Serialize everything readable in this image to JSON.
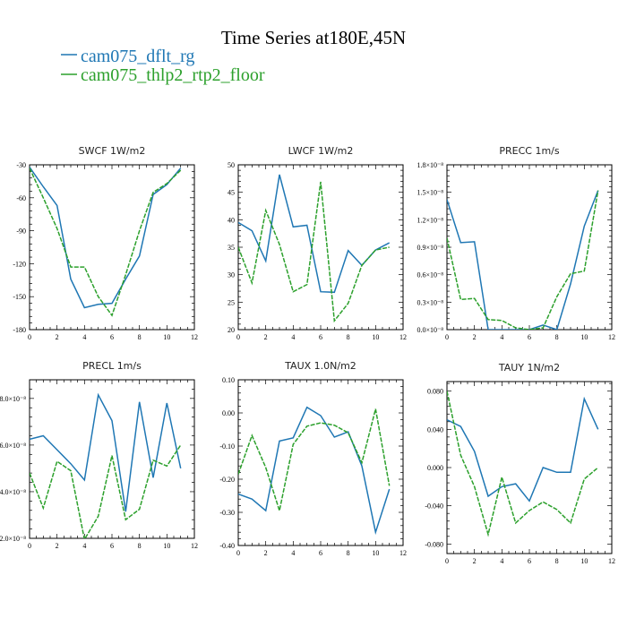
{
  "figure": {
    "title": "Time Series at180E,45N",
    "legend": [
      {
        "name": "cam075_dflt_rg",
        "color": "#1f77b4"
      },
      {
        "name": "cam075_thlp2_rtp2_floor",
        "color": "#2ca02c"
      }
    ]
  },
  "chart_data": [
    {
      "type": "line",
      "title": "SWCF   1W/m2",
      "xlim": [
        0,
        12
      ],
      "ylim": [
        -180,
        -30
      ],
      "xticks": [
        0,
        2,
        4,
        6,
        8,
        10,
        12
      ],
      "yticks": [
        -30,
        -60,
        -90,
        -120,
        -150,
        -180
      ],
      "ytick_labels": [
        "-30",
        "-60",
        "-90",
        "-120",
        "-150",
        "-180"
      ],
      "x": [
        0,
        1,
        2,
        3,
        4,
        5,
        6,
        7,
        8,
        9,
        10,
        11
      ],
      "series": [
        {
          "name": "cam075_dflt_rg",
          "values": [
            -32,
            -50,
            -67,
            -134,
            -160,
            -157,
            -156,
            -134,
            -113,
            -57,
            -48,
            -33
          ]
        },
        {
          "name": "cam075_thlp2_rtp2_floor",
          "values": [
            -33,
            -60,
            -88,
            -123,
            -123,
            -150,
            -167,
            -130,
            -90,
            -55,
            -47,
            -35
          ]
        }
      ]
    },
    {
      "type": "line",
      "title": "LWCF   1W/m2",
      "xlim": [
        0,
        12
      ],
      "ylim": [
        20,
        50
      ],
      "xticks": [
        0,
        2,
        4,
        6,
        8,
        10,
        12
      ],
      "yticks": [
        20,
        25,
        30,
        35,
        40,
        45,
        50
      ],
      "ytick_labels": [
        "20",
        "25",
        "30",
        "35",
        "40",
        "45",
        "50"
      ],
      "x": [
        0,
        1,
        2,
        3,
        4,
        5,
        6,
        7,
        8,
        9,
        10,
        11
      ],
      "series": [
        {
          "name": "cam075_dflt_rg",
          "values": [
            39.5,
            38,
            32.5,
            48.2,
            38.7,
            39,
            26.9,
            26.8,
            34.4,
            31.7,
            34.5,
            35.8
          ]
        },
        {
          "name": "cam075_thlp2_rtp2_floor",
          "values": [
            35,
            28.5,
            41.7,
            35.5,
            26.9,
            28.2,
            46.9,
            21.6,
            24.8,
            31.7,
            34.5,
            35
          ]
        }
      ]
    },
    {
      "type": "line",
      "title": "PRECC   1m/s",
      "xlim": [
        0,
        12
      ],
      "ylim": [
        0,
        1.8e-08
      ],
      "xticks": [
        0,
        2,
        4,
        6,
        8,
        10,
        12
      ],
      "yticks": [
        0,
        3e-09,
        6e-09,
        9e-09,
        1.2e-08,
        1.5e-08,
        1.8e-08
      ],
      "ytick_labels": [
        "0.0×10⁻⁸",
        "0.3×10⁻⁸",
        "0.6×10⁻⁸",
        "0.9×10⁻⁸",
        "1.2×10⁻⁸",
        "1.5×10⁻⁸",
        "1.8×10⁻⁸"
      ],
      "x": [
        0,
        1,
        2,
        3,
        4,
        5,
        6,
        7,
        8,
        9,
        10,
        11
      ],
      "series": [
        {
          "name": "cam075_dflt_rg",
          "values": [
            1.42e-08,
            9.5e-09,
            9.6e-09,
            0,
            0,
            0,
            0,
            5e-10,
            0,
            5e-09,
            1.13e-08,
            1.52e-08
          ]
        },
        {
          "name": "cam075_thlp2_rtp2_floor",
          "values": [
            1e-08,
            3.3e-09,
            3.4e-09,
            1.1e-09,
            1e-09,
            2e-10,
            0,
            2e-10,
            3.6e-09,
            6.1e-09,
            6.4e-09,
            1.52e-08
          ]
        }
      ]
    },
    {
      "type": "line",
      "title": "PRECL   1m/s",
      "xlim": [
        0,
        12
      ],
      "ylim": [
        2,
        8.8
      ],
      "xticks": [
        0,
        2,
        4,
        6,
        8,
        10,
        12
      ],
      "yticks": [
        2,
        4,
        6,
        8
      ],
      "ytick_labels": [
        ".2.0×10⁻⁸",
        "4.0×10⁻⁸",
        "6.0×10⁻⁸",
        "8.0×10⁻⁸"
      ],
      "x": [
        0,
        1,
        2,
        3,
        4,
        5,
        6,
        7,
        8,
        9,
        10,
        11
      ],
      "series": [
        {
          "name": "cam075_dflt_rg",
          "values": [
            6.25,
            6.4,
            5.8,
            5.2,
            4.5,
            8.15,
            7.05,
            3.15,
            7.85,
            4.6,
            7.8,
            5.0
          ]
        },
        {
          "name": "cam075_thlp2_rtp2_floor",
          "values": [
            4.8,
            3.3,
            5.3,
            4.9,
            1.95,
            2.95,
            5.55,
            2.8,
            3.25,
            5.35,
            5.1,
            6.0
          ]
        }
      ]
    },
    {
      "type": "line",
      "title": "TAUX   1.0N/m2",
      "xlim": [
        0,
        12
      ],
      "ylim": [
        -0.4,
        0.1
      ],
      "xticks": [
        0,
        2,
        4,
        6,
        8,
        10,
        12
      ],
      "yticks": [
        0.1,
        0,
        -0.1,
        -0.2,
        -0.3,
        -0.4
      ],
      "ytick_labels": [
        "0.10",
        "0.00",
        "-0.10",
        "-0.20",
        "-0.30",
        "-0.40"
      ],
      "x": [
        0,
        1,
        2,
        3,
        4,
        5,
        6,
        7,
        8,
        9,
        10,
        11
      ],
      "series": [
        {
          "name": "cam075_dflt_rg",
          "values": [
            -0.245,
            -0.26,
            -0.295,
            -0.085,
            -0.075,
            0.017,
            -0.008,
            -0.073,
            -0.057,
            -0.16,
            -0.36,
            -0.23
          ]
        },
        {
          "name": "cam075_thlp2_rtp2_floor",
          "values": [
            -0.185,
            -0.068,
            -0.165,
            -0.295,
            -0.095,
            -0.04,
            -0.03,
            -0.037,
            -0.06,
            -0.15,
            0.012,
            -0.22
          ]
        }
      ]
    },
    {
      "type": "line",
      "title": "TAUY   1N/m2",
      "xlim": [
        0,
        12
      ],
      "ylim": [
        -0.09,
        0.09
      ],
      "xticks": [
        0,
        2,
        4,
        6,
        8,
        10,
        12
      ],
      "yticks": [
        0.08,
        0.04,
        0,
        -0.04,
        -0.08
      ],
      "ytick_labels": [
        "0.080",
        "0.040",
        "0.000",
        "-0.040",
        "-0.080"
      ],
      "x": [
        0,
        1,
        2,
        3,
        4,
        5,
        6,
        7,
        8,
        9,
        10,
        11
      ],
      "series": [
        {
          "name": "cam075_dflt_rg",
          "values": [
            0.05,
            0.043,
            0.017,
            -0.03,
            -0.02,
            -0.017,
            -0.035,
            0.0,
            -0.005,
            -0.005,
            0.072,
            0.04
          ]
        },
        {
          "name": "cam075_thlp2_rtp2_floor",
          "values": [
            0.08,
            0.013,
            -0.02,
            -0.07,
            -0.01,
            -0.058,
            -0.045,
            -0.036,
            -0.044,
            -0.058,
            -0.012,
            0.0
          ]
        }
      ]
    }
  ]
}
